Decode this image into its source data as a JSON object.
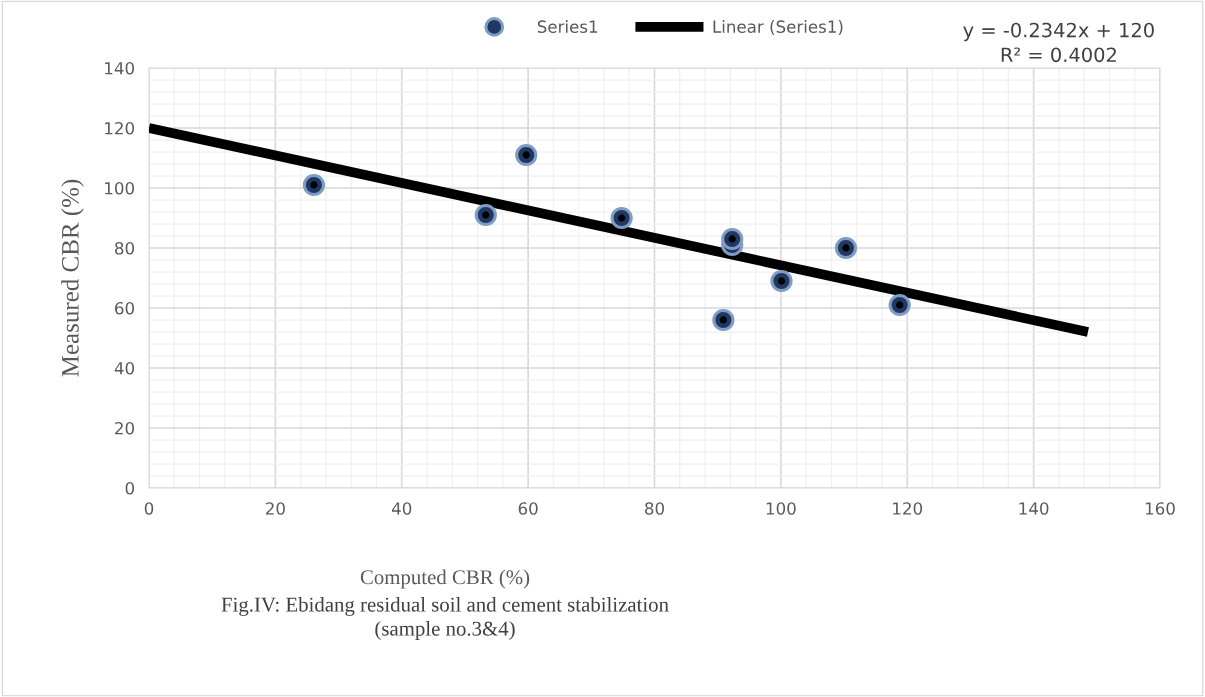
{
  "chart_data": {
    "type": "scatter",
    "xlabel": "Computed CBR (%)",
    "ylabel": "Measured CBR (%)",
    "series": [
      {
        "name": "Series1",
        "color": "#1f3864",
        "marker": "circle",
        "x": [
          26.1,
          53.3,
          59.7,
          74.8,
          92.3,
          92.3,
          90.9,
          100.1,
          110.3,
          118.8
        ],
        "values": [
          101,
          91,
          111,
          90,
          83,
          81,
          56,
          69,
          80,
          61
        ]
      },
      {
        "name": "Linear (Series1)",
        "type": "line",
        "color": "#000000",
        "marker": "none",
        "line_style": "solid",
        "x": [
          0,
          148.6
        ],
        "values": [
          120,
          52
        ]
      }
    ],
    "annotations": [
      "y = -0.2342x + 120\nR² = 0.4002",
      "Fig.IV: Ebidang residual soil and cement stabilization\n(sample no.3&4)"
    ],
    "xlim": [
      0,
      160
    ],
    "xticks": [
      0,
      20,
      40,
      60,
      80,
      100,
      120,
      140,
      160
    ],
    "ylim": [
      0,
      140
    ],
    "yticks": [
      0,
      20,
      40,
      60,
      80,
      100,
      120,
      140
    ],
    "grid": true,
    "legend": "top"
  }
}
